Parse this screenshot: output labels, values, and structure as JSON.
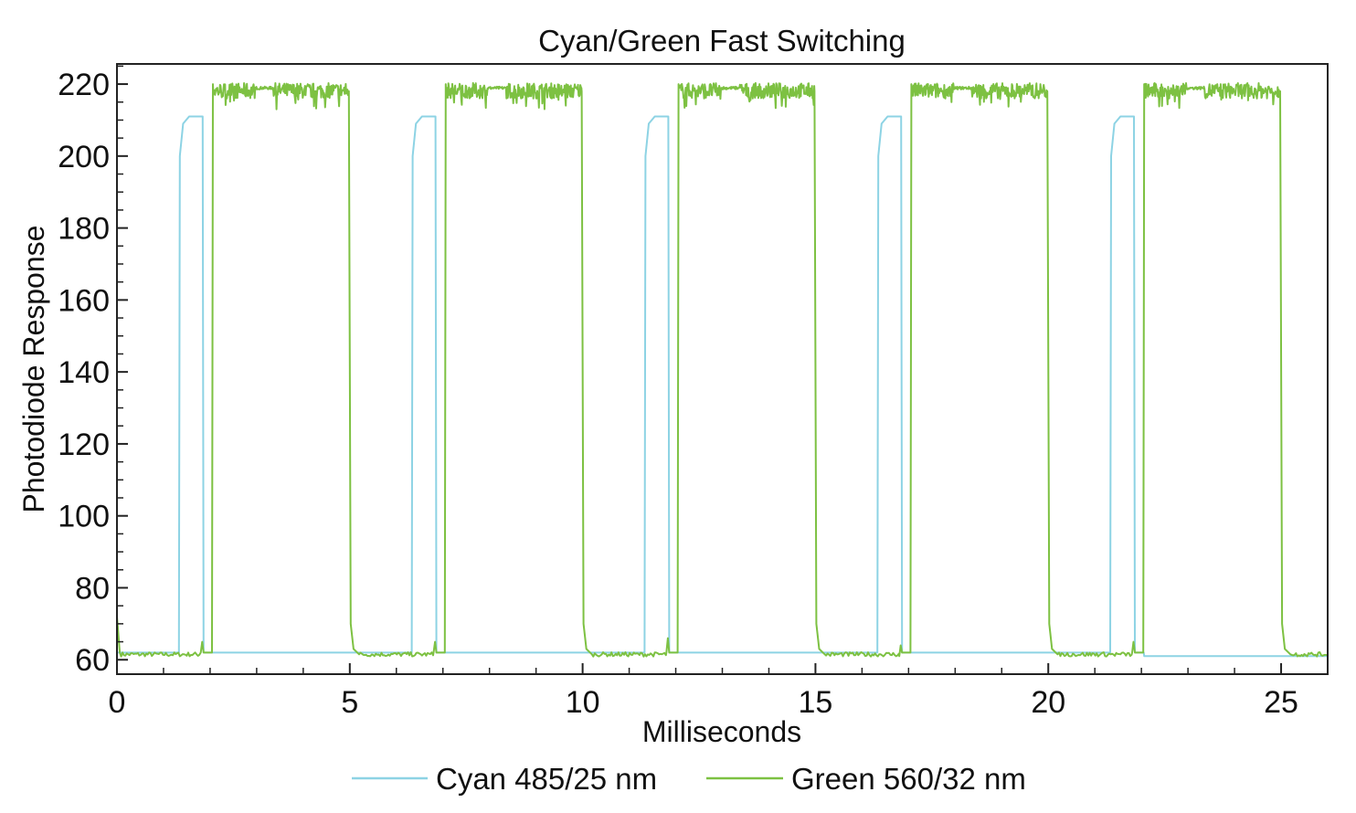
{
  "chart_data": {
    "type": "line",
    "title": "Cyan/Green Fast Switching",
    "xlabel": "Milliseconds",
    "ylabel": "Photodiode Response",
    "xlim": [
      0,
      26
    ],
    "ylim": [
      56,
      225.6
    ],
    "xticks": [
      0,
      5,
      10,
      15,
      20,
      25
    ],
    "yticks": [
      60,
      80,
      100,
      120,
      140,
      160,
      180,
      200,
      220
    ],
    "xtick_labels": [
      "0",
      "5",
      "10",
      "15",
      "20",
      "25"
    ],
    "ytick_labels": [
      "60",
      "80",
      "100",
      "120",
      "140",
      "160",
      "180",
      "200",
      "220"
    ],
    "grid": false,
    "legend_position": "bottom",
    "series": [
      {
        "name": "Cyan 485/25 nm",
        "color": "#8dd3e4",
        "points": [
          [
            0,
            62
          ],
          [
            1.33,
            62
          ],
          [
            1.35,
            200
          ],
          [
            1.42,
            209
          ],
          [
            1.55,
            211
          ],
          [
            1.84,
            211
          ],
          [
            1.86,
            62
          ],
          [
            6.33,
            62
          ],
          [
            6.35,
            200
          ],
          [
            6.42,
            209
          ],
          [
            6.55,
            211
          ],
          [
            6.84,
            211
          ],
          [
            6.86,
            62
          ],
          [
            11.33,
            62
          ],
          [
            11.35,
            200
          ],
          [
            11.42,
            209
          ],
          [
            11.55,
            211
          ],
          [
            11.84,
            211
          ],
          [
            11.86,
            62
          ],
          [
            16.33,
            62
          ],
          [
            16.35,
            200
          ],
          [
            16.42,
            209
          ],
          [
            16.55,
            211
          ],
          [
            16.84,
            211
          ],
          [
            16.86,
            62
          ],
          [
            21.33,
            62
          ],
          [
            21.35,
            200
          ],
          [
            21.42,
            209
          ],
          [
            21.55,
            211
          ],
          [
            21.84,
            211
          ],
          [
            21.86,
            62
          ],
          [
            22.05,
            62
          ],
          [
            22.06,
            61
          ],
          [
            26,
            61
          ]
        ]
      },
      {
        "name": "Green 560/32 nm",
        "color": "#7dc142",
        "points": [
          [
            0,
            72
          ],
          [
            0.06,
            62
          ],
          [
            1.8,
            62
          ],
          [
            1.83,
            65
          ],
          [
            1.86,
            62
          ],
          [
            2.04,
            62
          ],
          [
            2.06,
            220
          ],
          [
            4.98,
            218
          ],
          [
            5.02,
            70
          ],
          [
            5.08,
            63
          ],
          [
            5.2,
            61.5
          ],
          [
            6.8,
            62
          ],
          [
            6.83,
            65
          ],
          [
            6.86,
            62
          ],
          [
            7.04,
            62
          ],
          [
            7.06,
            220
          ],
          [
            9.98,
            218
          ],
          [
            10.02,
            70
          ],
          [
            10.08,
            63
          ],
          [
            10.2,
            61.5
          ],
          [
            11.8,
            62
          ],
          [
            11.83,
            66
          ],
          [
            11.86,
            62
          ],
          [
            12.04,
            62
          ],
          [
            12.06,
            220
          ],
          [
            14.98,
            218
          ],
          [
            15.02,
            70
          ],
          [
            15.08,
            63
          ],
          [
            15.2,
            61.5
          ],
          [
            16.8,
            61
          ],
          [
            16.83,
            64
          ],
          [
            16.86,
            62
          ],
          [
            17.04,
            62
          ],
          [
            17.06,
            220
          ],
          [
            19.98,
            218
          ],
          [
            20.02,
            70
          ],
          [
            20.08,
            63
          ],
          [
            20.2,
            61.5
          ],
          [
            21.8,
            62
          ],
          [
            21.83,
            65
          ],
          [
            21.86,
            62
          ],
          [
            22.04,
            62
          ],
          [
            22.06,
            220
          ],
          [
            24.98,
            218
          ],
          [
            25.02,
            70
          ],
          [
            25.08,
            63
          ],
          [
            25.2,
            61.5
          ],
          [
            26,
            61.5
          ]
        ]
      }
    ]
  }
}
